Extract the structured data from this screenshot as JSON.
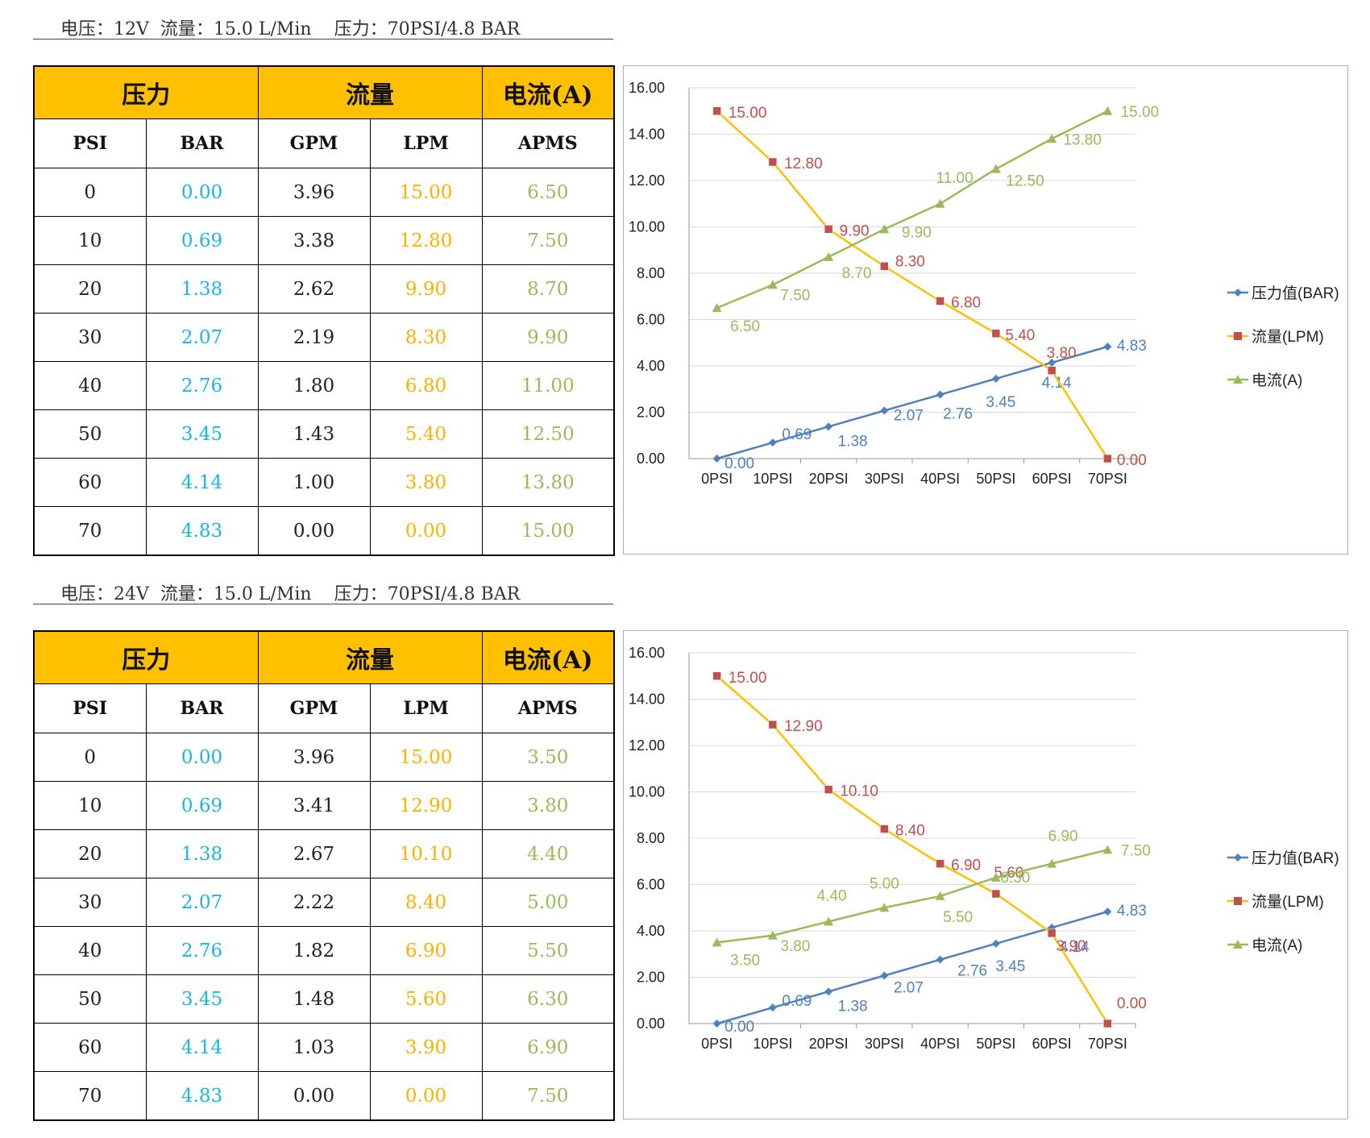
{
  "tables": [
    {
      "caption": "电压：12V  流量：15.0 L/Min    压力：70PSI/4.8 BAR",
      "group_headers": [
        "压力",
        "流量",
        "电流(A)"
      ],
      "unit_headers": [
        "PSI",
        "BAR",
        "GPM",
        "LPM",
        "APMS"
      ],
      "rows": [
        [
          "0",
          "0.00",
          "3.96",
          "15.00",
          "6.50"
        ],
        [
          "10",
          "0.69",
          "3.38",
          "12.80",
          "7.50"
        ],
        [
          "20",
          "1.38",
          "2.62",
          "9.90",
          "8.70"
        ],
        [
          "30",
          "2.07",
          "2.19",
          "8.30",
          "9.90"
        ],
        [
          "40",
          "2.76",
          "1.80",
          "6.80",
          "11.00"
        ],
        [
          "50",
          "3.45",
          "1.43",
          "5.40",
          "12.50"
        ],
        [
          "60",
          "4.14",
          "1.00",
          "3.80",
          "13.80"
        ],
        [
          "70",
          "4.83",
          "0.00",
          "0.00",
          "15.00"
        ]
      ]
    },
    {
      "caption": "电压：24V  流量：15.0 L/Min    压力：70PSI/4.8 BAR",
      "group_headers": [
        "压力",
        "流量",
        "电流(A)"
      ],
      "unit_headers": [
        "PSI",
        "BAR",
        "GPM",
        "LPM",
        "APMS"
      ],
      "rows": [
        [
          "0",
          "0.00",
          "3.96",
          "15.00",
          "3.50"
        ],
        [
          "10",
          "0.69",
          "3.41",
          "12.90",
          "3.80"
        ],
        [
          "20",
          "1.38",
          "2.67",
          "10.10",
          "4.40"
        ],
        [
          "30",
          "2.07",
          "2.22",
          "8.40",
          "5.00"
        ],
        [
          "40",
          "2.76",
          "1.82",
          "6.90",
          "5.50"
        ],
        [
          "50",
          "3.45",
          "1.48",
          "5.60",
          "6.30"
        ],
        [
          "60",
          "4.14",
          "1.03",
          "3.90",
          "6.90"
        ],
        [
          "70",
          "4.83",
          "0.00",
          "0.00",
          "7.50"
        ]
      ]
    }
  ],
  "chart_data": [
    {
      "type": "line",
      "categories": [
        "0PSI",
        "10PSI",
        "20PSI",
        "30PSI",
        "40PSI",
        "50PSI",
        "60PSI",
        "70PSI"
      ],
      "ylim": [
        0,
        16
      ],
      "ytick_labels": [
        "0.00",
        "2.00",
        "4.00",
        "6.00",
        "8.00",
        "10.00",
        "12.00",
        "14.00",
        "16.00"
      ],
      "grid": true,
      "legend_position": "right",
      "series": [
        {
          "name": "压力值(BAR)",
          "color": "#4F81BD",
          "marker": "diamond",
          "values": [
            0.0,
            0.69,
            1.38,
            2.07,
            2.76,
            3.45,
            4.14,
            4.83
          ]
        },
        {
          "name": "流量(LPM)",
          "color": "#FFC000",
          "marker": "square",
          "marker_color": "#C0504D",
          "label_color": "#C0504D",
          "values": [
            15.0,
            12.8,
            9.9,
            8.3,
            6.8,
            5.4,
            3.8,
            0.0
          ]
        },
        {
          "name": "电流(A)",
          "color": "#9BBB59",
          "marker": "triangle",
          "values": [
            6.5,
            7.5,
            8.7,
            9.9,
            11.0,
            12.5,
            13.8,
            15.0
          ]
        }
      ]
    },
    {
      "type": "line",
      "categories": [
        "0PSI",
        "10PSI",
        "20PSI",
        "30PSI",
        "40PSI",
        "50PSI",
        "60PSI",
        "70PSI"
      ],
      "ylim": [
        0,
        16
      ],
      "ytick_labels": [
        "0.00",
        "2.00",
        "4.00",
        "6.00",
        "8.00",
        "10.00",
        "12.00",
        "14.00",
        "16.00"
      ],
      "grid": true,
      "legend_position": "right",
      "series": [
        {
          "name": "压力值(BAR)",
          "color": "#4F81BD",
          "marker": "diamond",
          "values": [
            0.0,
            0.69,
            1.38,
            2.07,
            2.76,
            3.45,
            4.14,
            4.83
          ]
        },
        {
          "name": "流量(LPM)",
          "color": "#FFC000",
          "marker": "square",
          "marker_color": "#C0504D",
          "label_color": "#C0504D",
          "values": [
            15.0,
            12.9,
            10.1,
            8.4,
            6.9,
            5.6,
            3.9,
            0.0
          ]
        },
        {
          "name": "电流(A)",
          "color": "#9BBB59",
          "marker": "triangle",
          "values": [
            3.5,
            3.8,
            4.4,
            5.0,
            5.5,
            6.3,
            6.9,
            7.5
          ]
        }
      ]
    }
  ]
}
